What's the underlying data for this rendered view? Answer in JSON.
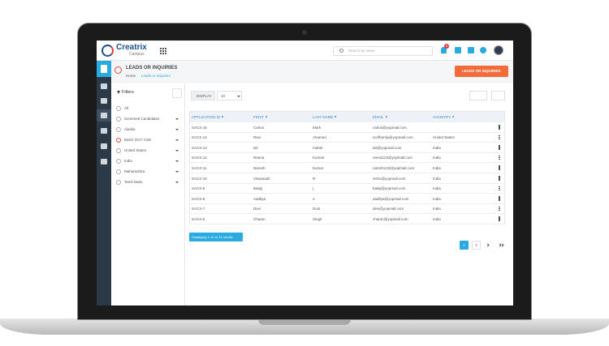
{
  "header": {
    "logo": "Creatrix",
    "logo_sub": "Campus",
    "search_placeholder": "Search by name",
    "notification_count": "5"
  },
  "page": {
    "title": "LEADS OR INQUIRIES",
    "breadcrumb": [
      "Home",
      "Leads or Inquiries"
    ],
    "add_button": "LEADS OR INQUIRIES"
  },
  "filters": {
    "title": "Filters",
    "items": [
      "All",
      "Screened Candidates",
      "Alaska",
      "Batch 2017 CSE",
      "United States",
      "India",
      "Maharashtra",
      "Tamil Nadu"
    ]
  },
  "table": {
    "display_label": "DISPLAY",
    "page_size": "10",
    "columns": [
      "APPLICATION ID",
      "FIRST",
      "LAST NAME",
      "EMAIL",
      "COUNTRY"
    ],
    "rows": [
      [
        "SACS-15",
        "Carlos",
        "Mark",
        "carlos@yopmail.com"
      ],
      [
        "SACS-14",
        "Ravi",
        "Ahamed",
        "scriffamily@yopmail.com",
        "United States"
      ],
      [
        "SACS-13",
        "lali",
        "mahel",
        "lali@yopmail.com",
        "India"
      ],
      [
        "SACS-12",
        "Reena",
        "Kumari",
        "reena123@yopmail.com",
        "India"
      ],
      [
        "SACS-11",
        "Naresh",
        "Kumar",
        "naresh123@yopmail.com",
        "India"
      ],
      [
        "SACS-10",
        "Viswanath",
        "R",
        "visho@yopmail.com",
        "India"
      ],
      [
        "SACS-9",
        "Balaji",
        "j",
        "balaji@yopmail.com",
        "India"
      ],
      [
        "SACS-8",
        "Aaditya",
        "A",
        "aaditya@yopmail.com",
        "India"
      ],
      [
        "SACS-7",
        "Devi",
        "Dust",
        "devi@yopmail.com",
        "India"
      ],
      [
        "SACS-6",
        "Charan",
        "Singh",
        "charan@yopmail.com",
        "India"
      ]
    ],
    "summary": "Displaying 1-10 of 15 results."
  },
  "pagination": {
    "pages": [
      "1",
      "2"
    ]
  }
}
